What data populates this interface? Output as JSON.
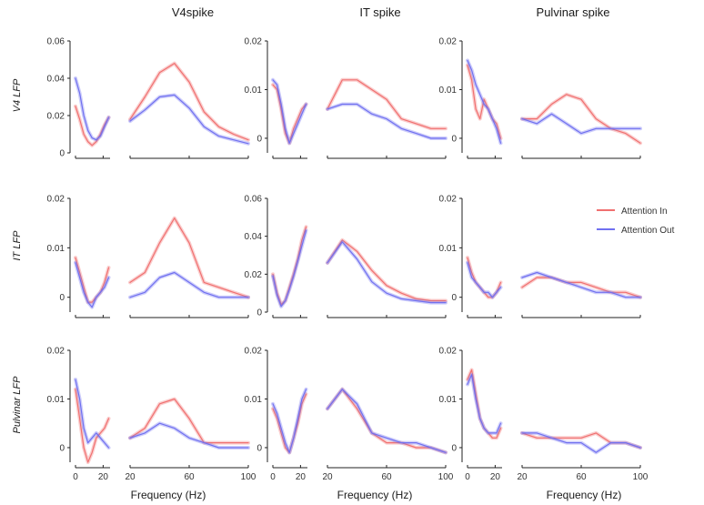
{
  "colors": {
    "attention_in": "#f07070",
    "attention_out": "#7070f0"
  },
  "column_titles": [
    "V4spike",
    "IT spike",
    "Pulvinar spike"
  ],
  "row_labels": [
    "V4  LFP",
    "IT  LFP",
    "Pulvinar LFP"
  ],
  "x_label": "Frequency (Hz)",
  "legend": {
    "attention_in": "Attention In",
    "attention_out": "Attention Out"
  },
  "chart_data": {
    "type": "line",
    "xlabel": "Frequency (Hz)",
    "legend_position": "top-right of row 2",
    "low_xlim": [
      0,
      25
    ],
    "low_xticks": [
      "0",
      "20"
    ],
    "high_xlim": [
      20,
      100
    ],
    "high_xticks": [
      "20",
      "60",
      "100"
    ],
    "series_names": [
      "Attention In",
      "Attention Out"
    ],
    "panels": [
      {
        "row": 0,
        "col": 0,
        "ylim": [
          0,
          0.06
        ],
        "yticks": [
          "0",
          "0.02",
          "0.04",
          "0.06"
        ],
        "low": {
          "x": [
            0,
            3,
            6,
            9,
            12,
            15,
            18,
            21,
            24
          ],
          "attention_in": [
            0.025,
            0.018,
            0.01,
            0.006,
            0.004,
            0.006,
            0.01,
            0.015,
            0.019
          ],
          "attention_out": [
            0.04,
            0.032,
            0.02,
            0.012,
            0.008,
            0.007,
            0.009,
            0.014,
            0.019
          ]
        },
        "high": {
          "x": [
            20,
            30,
            40,
            50,
            60,
            70,
            80,
            90,
            100
          ],
          "attention_in": [
            0.018,
            0.03,
            0.043,
            0.048,
            0.038,
            0.022,
            0.014,
            0.01,
            0.007
          ],
          "attention_out": [
            0.017,
            0.023,
            0.03,
            0.031,
            0.024,
            0.014,
            0.009,
            0.007,
            0.005
          ]
        }
      },
      {
        "row": 0,
        "col": 1,
        "ylim": [
          -0.003,
          0.02
        ],
        "yticks": [
          "0",
          "0.01",
          "0.02"
        ],
        "low": {
          "x": [
            0,
            3,
            6,
            9,
            12,
            15,
            18,
            21,
            24
          ],
          "attention_in": [
            0.011,
            0.01,
            0.006,
            0.001,
            -0.001,
            0.002,
            0.004,
            0.006,
            0.007
          ],
          "attention_out": [
            0.012,
            0.011,
            0.007,
            0.002,
            -0.001,
            0.001,
            0.003,
            0.005,
            0.007
          ]
        },
        "high": {
          "x": [
            20,
            30,
            40,
            50,
            60,
            70,
            80,
            90,
            100
          ],
          "attention_in": [
            0.006,
            0.012,
            0.012,
            0.01,
            0.008,
            0.004,
            0.003,
            0.002,
            0.002
          ],
          "attention_out": [
            0.006,
            0.007,
            0.007,
            0.005,
            0.004,
            0.002,
            0.001,
            0.0,
            0.0
          ]
        }
      },
      {
        "row": 0,
        "col": 2,
        "ylim": [
          -0.003,
          0.02
        ],
        "yticks": [
          "0",
          "0.01",
          "0.02"
        ],
        "low": {
          "x": [
            0,
            3,
            6,
            9,
            12,
            15,
            18,
            21,
            24
          ],
          "attention_in": [
            0.015,
            0.012,
            0.006,
            0.004,
            0.008,
            0.006,
            0.004,
            0.003,
            0.0
          ],
          "attention_out": [
            0.016,
            0.014,
            0.011,
            0.009,
            0.007,
            0.006,
            0.004,
            0.002,
            -0.001
          ]
        },
        "high": {
          "x": [
            20,
            30,
            40,
            50,
            60,
            70,
            80,
            90,
            100
          ],
          "attention_in": [
            0.004,
            0.004,
            0.007,
            0.009,
            0.008,
            0.004,
            0.002,
            0.001,
            -0.001
          ],
          "attention_out": [
            0.004,
            0.003,
            0.005,
            0.003,
            0.001,
            0.002,
            0.002,
            0.002,
            0.002
          ]
        }
      },
      {
        "row": 1,
        "col": 0,
        "ylim": [
          -0.003,
          0.02
        ],
        "yticks": [
          "0",
          "0.01",
          "0.02"
        ],
        "low": {
          "x": [
            0,
            3,
            6,
            9,
            12,
            15,
            18,
            21,
            24
          ],
          "attention_in": [
            0.008,
            0.005,
            0.002,
            -0.001,
            -0.001,
            0.0,
            0.001,
            0.003,
            0.006
          ],
          "attention_out": [
            0.007,
            0.004,
            0.001,
            -0.001,
            -0.002,
            0.0,
            0.001,
            0.002,
            0.004
          ]
        },
        "high": {
          "x": [
            20,
            30,
            40,
            50,
            60,
            70,
            80,
            90,
            100
          ],
          "attention_in": [
            0.003,
            0.005,
            0.011,
            0.016,
            0.011,
            0.003,
            0.002,
            0.001,
            0.0
          ],
          "attention_out": [
            0.0,
            0.001,
            0.004,
            0.005,
            0.003,
            0.001,
            0.0,
            0.0,
            0.0
          ]
        }
      },
      {
        "row": 1,
        "col": 1,
        "ylim": [
          0,
          0.06
        ],
        "yticks": [
          "0",
          "0.02",
          "0.04",
          "0.06"
        ],
        "low": {
          "x": [
            0,
            3,
            6,
            9,
            12,
            15,
            18,
            21,
            24
          ],
          "attention_in": [
            0.02,
            0.01,
            0.004,
            0.006,
            0.013,
            0.02,
            0.028,
            0.038,
            0.045
          ],
          "attention_out": [
            0.019,
            0.009,
            0.003,
            0.006,
            0.012,
            0.019,
            0.027,
            0.035,
            0.043
          ]
        },
        "high": {
          "x": [
            20,
            30,
            40,
            50,
            60,
            70,
            80,
            90,
            100
          ],
          "attention_in": [
            0.026,
            0.038,
            0.032,
            0.022,
            0.014,
            0.01,
            0.007,
            0.006,
            0.006
          ],
          "attention_out": [
            0.026,
            0.037,
            0.028,
            0.016,
            0.01,
            0.007,
            0.006,
            0.005,
            0.005
          ]
        }
      },
      {
        "row": 1,
        "col": 2,
        "ylim": [
          -0.003,
          0.02
        ],
        "yticks": [
          "0",
          "0.01",
          "0.02"
        ],
        "low": {
          "x": [
            0,
            3,
            6,
            9,
            12,
            15,
            18,
            21,
            24
          ],
          "attention_in": [
            0.008,
            0.005,
            0.003,
            0.002,
            0.001,
            0.0,
            0.0,
            0.001,
            0.003
          ],
          "attention_out": [
            0.007,
            0.004,
            0.003,
            0.002,
            0.001,
            0.001,
            0.0,
            0.001,
            0.002
          ]
        },
        "high": {
          "x": [
            20,
            30,
            40,
            50,
            60,
            70,
            80,
            90,
            100
          ],
          "attention_in": [
            0.002,
            0.004,
            0.004,
            0.003,
            0.003,
            0.002,
            0.001,
            0.001,
            0.0
          ],
          "attention_out": [
            0.004,
            0.005,
            0.004,
            0.003,
            0.002,
            0.001,
            0.001,
            0.0,
            0.0
          ]
        }
      },
      {
        "row": 2,
        "col": 0,
        "ylim": [
          -0.003,
          0.02
        ],
        "yticks": [
          "0",
          "0.01",
          "0.02"
        ],
        "low": {
          "x": [
            0,
            3,
            6,
            9,
            12,
            15,
            18,
            21,
            24
          ],
          "attention_in": [
            0.012,
            0.006,
            0.0,
            -0.003,
            -0.001,
            0.002,
            0.003,
            0.004,
            0.006
          ],
          "attention_out": [
            0.014,
            0.01,
            0.004,
            0.001,
            0.002,
            0.003,
            0.002,
            0.001,
            0.0
          ]
        },
        "high": {
          "x": [
            20,
            30,
            40,
            50,
            60,
            70,
            80,
            90,
            100
          ],
          "attention_in": [
            0.002,
            0.004,
            0.009,
            0.01,
            0.006,
            0.001,
            0.001,
            0.001,
            0.001
          ],
          "attention_out": [
            0.002,
            0.003,
            0.005,
            0.004,
            0.002,
            0.001,
            0.0,
            0.0,
            0.0
          ]
        }
      },
      {
        "row": 2,
        "col": 1,
        "ylim": [
          -0.003,
          0.02
        ],
        "yticks": [
          "0",
          "0.01",
          "0.02"
        ],
        "low": {
          "x": [
            0,
            3,
            6,
            9,
            12,
            15,
            18,
            21,
            24
          ],
          "attention_in": [
            0.008,
            0.006,
            0.003,
            0.0,
            -0.001,
            0.002,
            0.005,
            0.009,
            0.011
          ],
          "attention_out": [
            0.009,
            0.007,
            0.004,
            0.001,
            -0.001,
            0.002,
            0.006,
            0.01,
            0.012
          ]
        },
        "high": {
          "x": [
            20,
            30,
            40,
            50,
            60,
            70,
            80,
            90,
            100
          ],
          "attention_in": [
            0.008,
            0.012,
            0.008,
            0.003,
            0.001,
            0.001,
            0.0,
            0.0,
            -0.001
          ],
          "attention_out": [
            0.008,
            0.012,
            0.009,
            0.003,
            0.002,
            0.001,
            0.001,
            0.0,
            -0.001
          ]
        }
      },
      {
        "row": 2,
        "col": 2,
        "ylim": [
          -0.003,
          0.02
        ],
        "yticks": [
          "0",
          "0.01",
          "0.02"
        ],
        "low": {
          "x": [
            0,
            3,
            6,
            9,
            12,
            15,
            18,
            21,
            24
          ],
          "attention_in": [
            0.014,
            0.016,
            0.011,
            0.006,
            0.004,
            0.003,
            0.002,
            0.002,
            0.004
          ],
          "attention_out": [
            0.013,
            0.015,
            0.01,
            0.006,
            0.004,
            0.003,
            0.003,
            0.003,
            0.005
          ]
        },
        "high": {
          "x": [
            20,
            30,
            40,
            50,
            60,
            70,
            80,
            90,
            100
          ],
          "attention_in": [
            0.003,
            0.002,
            0.002,
            0.002,
            0.002,
            0.003,
            0.001,
            0.001,
            0.0
          ],
          "attention_out": [
            0.003,
            0.003,
            0.002,
            0.001,
            0.001,
            -0.001,
            0.001,
            0.001,
            0.0
          ]
        }
      }
    ]
  }
}
